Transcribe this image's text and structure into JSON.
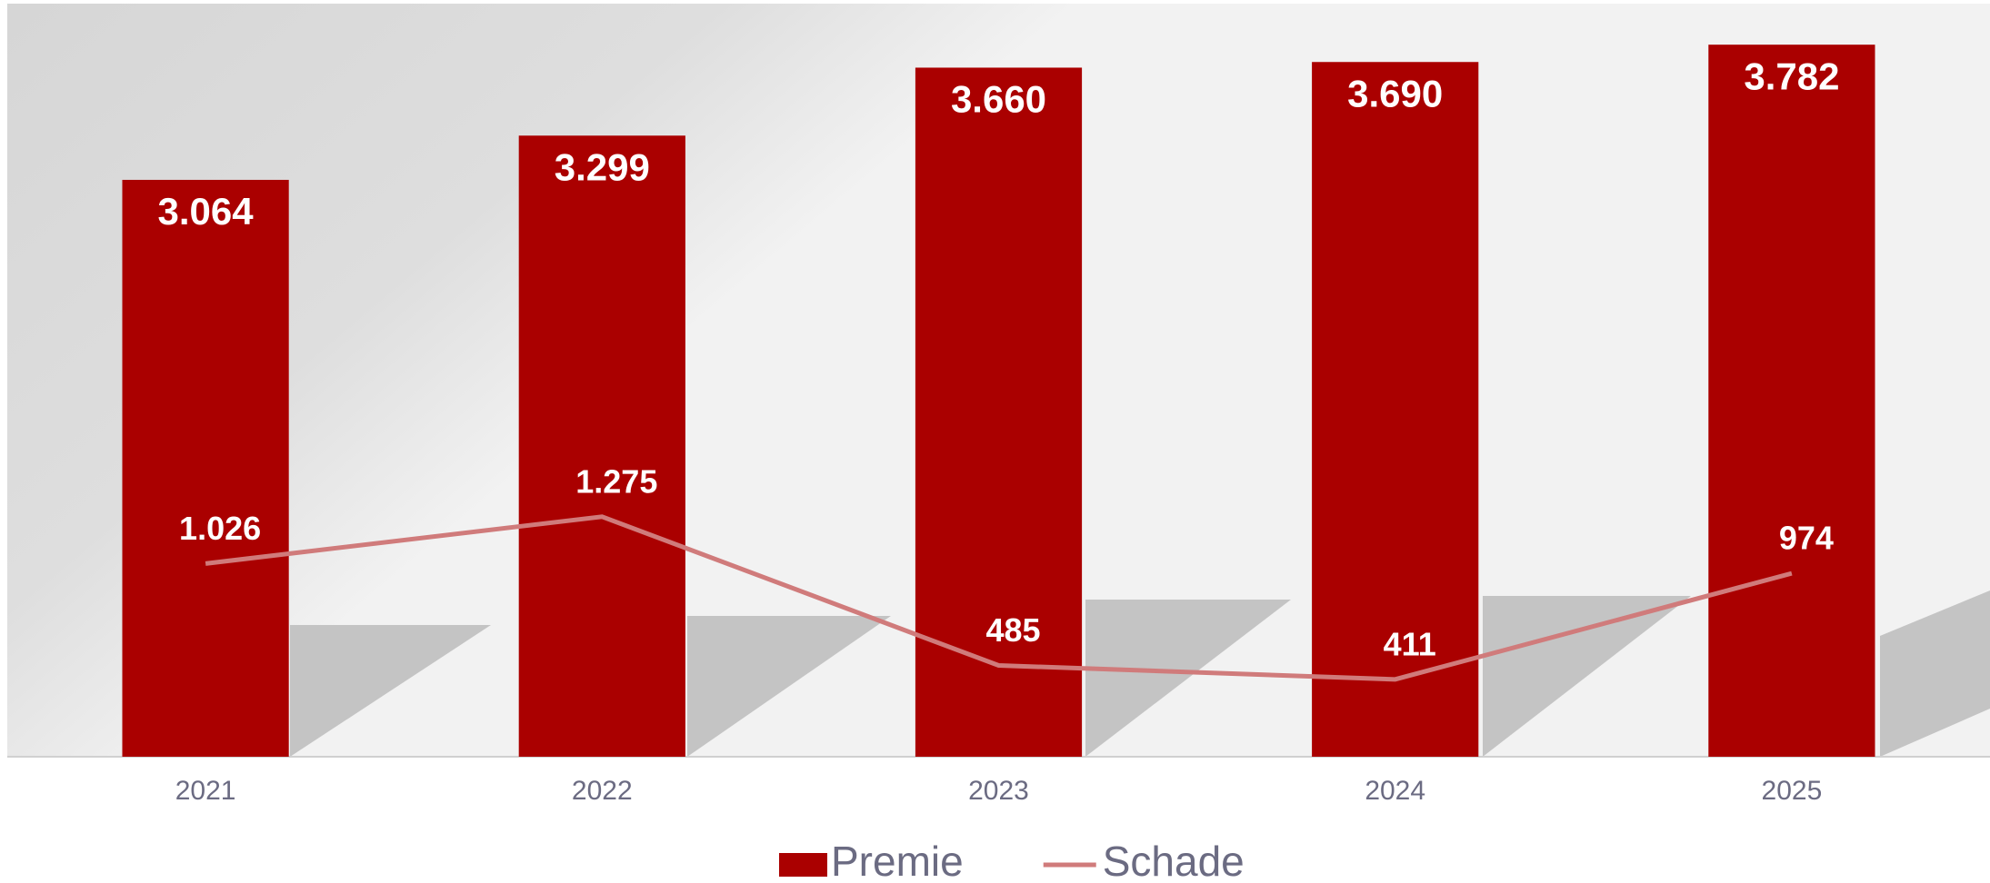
{
  "chart_data": {
    "type": "bar",
    "categories": [
      "2021",
      "2022",
      "2023",
      "2024",
      "2025"
    ],
    "series": [
      {
        "name": "Premie",
        "type": "bar",
        "color": "#aa0000",
        "values": [
          3064,
          3299,
          3660,
          3690,
          3782
        ],
        "value_labels": [
          "3.064",
          "3.299",
          "3.660",
          "3.690",
          "3.782"
        ]
      },
      {
        "name": "Schade",
        "type": "line",
        "color": "#d07b7b",
        "values": [
          1026,
          1275,
          485,
          411,
          974
        ],
        "value_labels": [
          "1.026",
          "1.275",
          "485",
          "411",
          "974"
        ]
      }
    ],
    "ylim": [
      0,
      4000
    ],
    "legend": "bottom"
  }
}
